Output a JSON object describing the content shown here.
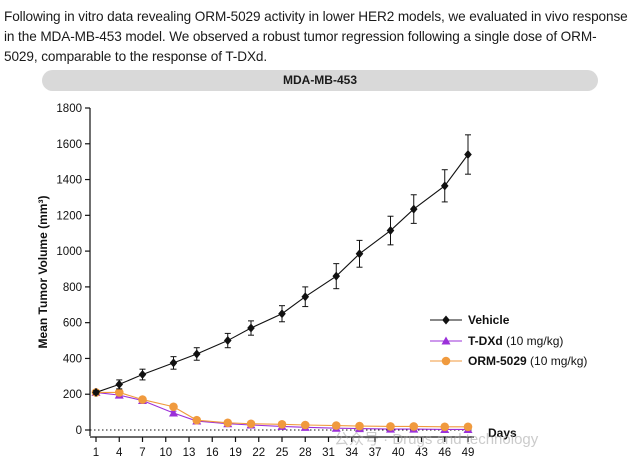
{
  "intro_text": "Following in vitro data revealing ORM-5029 activity in lower HER2 models, we evaluated in vivo response in the MDA-MB-453 model. We observed a robust tumor regression following a single dose of ORM-5029, comparable to the response of T-DXd.",
  "watermark": "公众号 · Drugs and technology",
  "chart_data": {
    "type": "line",
    "title": "MDA-MB-453",
    "xlabel": "Days",
    "ylabel": "Mean Tumor Volume (mm³)",
    "x_ticks": [
      1,
      4,
      7,
      10,
      13,
      16,
      19,
      22,
      25,
      28,
      31,
      34,
      37,
      40,
      43,
      46,
      49
    ],
    "xlim": [
      1,
      49
    ],
    "y_ticks": [
      0,
      200,
      400,
      600,
      800,
      1000,
      1200,
      1400,
      1600,
      1800
    ],
    "ylim": [
      0,
      1800
    ],
    "series": [
      {
        "name": "Vehicle",
        "dose": "",
        "color": "#111111",
        "marker": "diamond",
        "x": [
          1,
          4,
          7,
          11,
          14,
          18,
          21,
          25,
          28,
          32,
          35,
          39,
          42,
          46,
          49
        ],
        "y": [
          210,
          255,
          310,
          375,
          425,
          500,
          570,
          650,
          745,
          860,
          985,
          1115,
          1235,
          1365,
          1540
        ],
        "err": [
          10,
          25,
          30,
          35,
          35,
          40,
          40,
          45,
          55,
          70,
          75,
          80,
          80,
          90,
          110
        ]
      },
      {
        "name": "T-DXd",
        "dose": "(10 mg/kg)",
        "color": "#9b30d9",
        "marker": "triangle",
        "x": [
          1,
          4,
          7,
          11,
          14,
          18,
          21,
          25,
          28,
          32,
          35,
          39,
          42,
          46,
          49
        ],
        "y": [
          210,
          195,
          165,
          95,
          50,
          35,
          28,
          20,
          15,
          10,
          8,
          5,
          5,
          3,
          3
        ],
        "err": [
          10,
          15,
          10,
          10,
          5,
          5,
          5,
          5,
          5,
          3,
          3,
          3,
          3,
          2,
          2
        ]
      },
      {
        "name": "ORM-5029",
        "dose": "(10 mg/kg)",
        "color": "#f09a3e",
        "marker": "circle",
        "x": [
          1,
          4,
          7,
          11,
          14,
          18,
          21,
          25,
          28,
          32,
          35,
          39,
          42,
          46,
          49
        ],
        "y": [
          210,
          210,
          170,
          130,
          55,
          40,
          35,
          32,
          28,
          25,
          22,
          20,
          20,
          18,
          18
        ],
        "err": [
          10,
          15,
          10,
          10,
          5,
          5,
          5,
          5,
          5,
          3,
          3,
          3,
          3,
          3,
          3
        ]
      }
    ]
  }
}
